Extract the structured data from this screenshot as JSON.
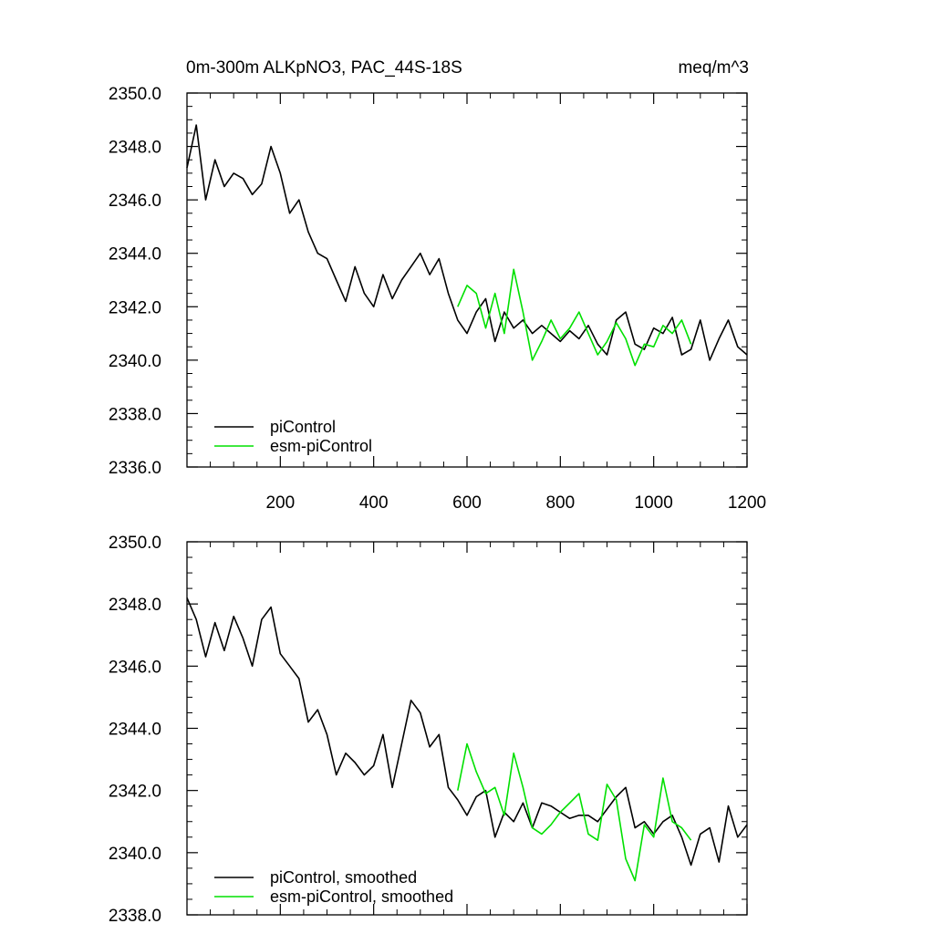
{
  "header": {
    "title": "0m-300m ALKpNO3, PAC_44S-18S",
    "units": "meq/m^3"
  },
  "colors": {
    "piControl": "#000000",
    "esm_piControl": "#00e000",
    "axis": "#000000"
  },
  "chart_data": [
    {
      "type": "line",
      "xlim": [
        0,
        1200
      ],
      "ylim": [
        2336.0,
        2350.0
      ],
      "x_ticks": [
        200,
        400,
        600,
        800,
        1000,
        1200
      ],
      "y_ticks": [
        "2336.0",
        "2338.0",
        "2340.0",
        "2342.0",
        "2344.0",
        "2346.0",
        "2348.0",
        "2350.0"
      ],
      "legend_position": "bottom-left",
      "grid": false,
      "series": [
        {
          "name": "piControl",
          "color": "#000000",
          "x": [
            0,
            20,
            40,
            60,
            80,
            100,
            120,
            140,
            160,
            180,
            200,
            220,
            240,
            260,
            280,
            300,
            320,
            340,
            360,
            380,
            400,
            420,
            440,
            460,
            480,
            500,
            520,
            540,
            560,
            580,
            600,
            620,
            640,
            660,
            680,
            700,
            720,
            740,
            760,
            780,
            800,
            820,
            840,
            860,
            880,
            900,
            920,
            940,
            960,
            980,
            1000,
            1020,
            1040,
            1060,
            1080,
            1100,
            1120,
            1140,
            1160,
            1180,
            1200
          ],
          "y": [
            2347.2,
            2348.8,
            2346.0,
            2347.5,
            2346.5,
            2347.0,
            2346.8,
            2346.2,
            2346.6,
            2348.0,
            2347.0,
            2345.5,
            2346.0,
            2344.8,
            2344.0,
            2343.8,
            2343.0,
            2342.2,
            2343.5,
            2342.5,
            2342.0,
            2343.2,
            2342.3,
            2343.0,
            2343.5,
            2344.0,
            2343.2,
            2343.8,
            2342.5,
            2341.5,
            2341.0,
            2341.8,
            2342.3,
            2340.7,
            2341.8,
            2341.2,
            2341.5,
            2341.0,
            2341.3,
            2341.0,
            2340.7,
            2341.1,
            2340.8,
            2341.3,
            2340.6,
            2340.2,
            2341.5,
            2341.8,
            2340.6,
            2340.4,
            2341.2,
            2341.0,
            2341.6,
            2340.2,
            2340.4,
            2341.5,
            2340.0,
            2340.8,
            2341.5,
            2340.5,
            2340.2
          ]
        },
        {
          "name": "esm-piControl",
          "color": "#00e000",
          "x": [
            580,
            600,
            620,
            640,
            660,
            680,
            700,
            720,
            740,
            760,
            780,
            800,
            820,
            840,
            860,
            880,
            900,
            920,
            940,
            960,
            980,
            1000,
            1020,
            1040,
            1060,
            1080
          ],
          "y": [
            2342.0,
            2342.8,
            2342.5,
            2341.2,
            2342.5,
            2341.0,
            2343.4,
            2341.8,
            2340.0,
            2340.7,
            2341.5,
            2340.8,
            2341.2,
            2341.8,
            2341.0,
            2340.2,
            2340.7,
            2341.4,
            2340.8,
            2339.8,
            2340.6,
            2340.5,
            2341.3,
            2341.0,
            2341.5,
            2340.6
          ]
        }
      ]
    },
    {
      "type": "line",
      "xlim": [
        0,
        1200
      ],
      "ylim": [
        2338.0,
        2350.0
      ],
      "y_ticks": [
        "2338.0",
        "2340.0",
        "2342.0",
        "2344.0",
        "2346.0",
        "2348.0",
        "2350.0"
      ],
      "legend_position": "bottom-left",
      "grid": false,
      "series": [
        {
          "name": "piControl, smoothed",
          "color": "#000000",
          "x": [
            0,
            20,
            40,
            60,
            80,
            100,
            120,
            140,
            160,
            180,
            200,
            220,
            240,
            260,
            280,
            300,
            320,
            340,
            360,
            380,
            400,
            420,
            440,
            460,
            480,
            500,
            520,
            540,
            560,
            580,
            600,
            620,
            640,
            660,
            680,
            700,
            720,
            740,
            760,
            780,
            800,
            820,
            840,
            860,
            880,
            900,
            920,
            940,
            960,
            980,
            1000,
            1020,
            1040,
            1060,
            1080,
            1100,
            1120,
            1140,
            1160,
            1180,
            1200
          ],
          "y": [
            2348.2,
            2347.5,
            2346.3,
            2347.4,
            2346.5,
            2347.6,
            2346.9,
            2346.0,
            2347.5,
            2347.9,
            2346.4,
            2346.0,
            2345.6,
            2344.2,
            2344.6,
            2343.8,
            2342.5,
            2343.2,
            2342.9,
            2342.5,
            2342.8,
            2343.8,
            2342.1,
            2343.5,
            2344.9,
            2344.5,
            2343.4,
            2343.8,
            2342.1,
            2341.7,
            2341.2,
            2341.8,
            2342.0,
            2340.5,
            2341.3,
            2341.0,
            2341.6,
            2340.8,
            2341.6,
            2341.5,
            2341.3,
            2341.1,
            2341.2,
            2341.2,
            2341.0,
            2341.4,
            2341.8,
            2342.1,
            2340.8,
            2341.0,
            2340.6,
            2341.0,
            2341.2,
            2340.5,
            2339.6,
            2340.6,
            2340.8,
            2339.7,
            2341.5,
            2340.5,
            2340.9
          ]
        },
        {
          "name": "esm-piControl, smoothed",
          "color": "#00e000",
          "x": [
            580,
            600,
            620,
            640,
            660,
            680,
            700,
            720,
            740,
            760,
            780,
            800,
            820,
            840,
            860,
            880,
            900,
            920,
            940,
            960,
            980,
            1000,
            1020,
            1040,
            1060,
            1080
          ],
          "y": [
            2342.0,
            2343.5,
            2342.6,
            2341.9,
            2342.1,
            2341.2,
            2343.2,
            2342.1,
            2340.8,
            2340.6,
            2340.9,
            2341.3,
            2341.6,
            2341.9,
            2340.6,
            2340.4,
            2342.2,
            2341.7,
            2339.8,
            2339.1,
            2340.9,
            2340.5,
            2342.4,
            2341.0,
            2340.8,
            2340.4
          ]
        }
      ]
    }
  ]
}
